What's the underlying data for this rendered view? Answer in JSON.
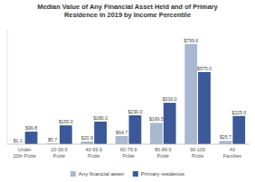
{
  "chart_data": {
    "type": "bar",
    "title": "Median Value of Any Financial Asset Held and of Primary\nResidence in 2019 by Income Percentile",
    "categories": [
      "Under\n20th Pctile",
      "20-39.9\nPctile",
      "40-59.9\nPctile",
      "60-79.9\nPctile",
      "80-89.9\nPctile",
      "90-100\nPctile",
      "All\nFamilies"
    ],
    "series": [
      {
        "name": "Any financial asset",
        "color": "#a8b8d0",
        "values": [
          1.1,
          5.7,
          20.9,
          64.7,
          169.5,
          799.6,
          25.7
        ],
        "value_labels": [
          "$1.1",
          "$5.7",
          "$20.9",
          "$64.7",
          "$169.5",
          "$799.6",
          "$25.7"
        ]
      },
      {
        "name": "Primary residence",
        "color": "#3b5998",
        "values": [
          99.8,
          150.0,
          180.0,
          230.0,
          330.0,
          575.0,
          225.0
        ],
        "value_labels": [
          "$99.8",
          "$150.0",
          "$180.0",
          "$230.0",
          "$330.0",
          "$575.0",
          "$225.0"
        ]
      }
    ],
    "ylim": [
      0,
      920
    ],
    "grid": false,
    "tick_labels": "x",
    "data_labels": true,
    "legend": "bottom"
  }
}
